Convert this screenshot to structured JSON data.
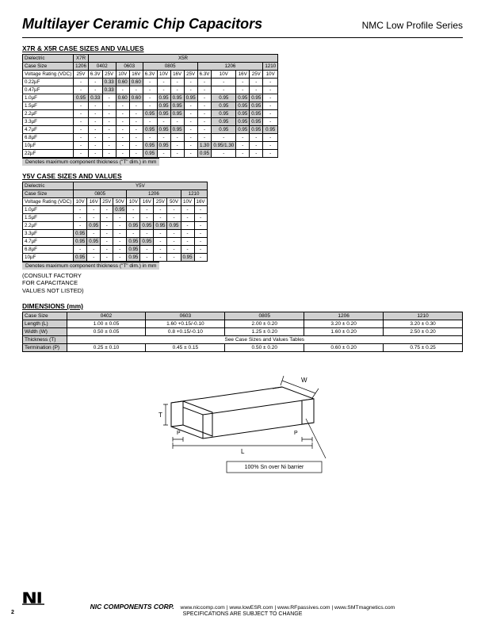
{
  "title": "Multilayer Ceramic Chip Capacitors",
  "series": "NMC Low Profile Series",
  "sec1_title": "X7R & X5R CASE SIZES AND VALUES",
  "dielectric_label": "Dielectric",
  "case_label": "Case Size",
  "vr_label": "Voltage Rating (VDC)",
  "x7r": "X7R",
  "x5r": "X5R",
  "t1": {
    "cs": [
      "1206",
      "0402",
      "0603",
      "0805",
      "1206",
      "1210"
    ],
    "vr": [
      "25V",
      "6.3V",
      "25V",
      "10V",
      "16V",
      "6.3V",
      "10V",
      "16V",
      "25V",
      "6.3V",
      "10V",
      "16V",
      "25V",
      "10V"
    ],
    "caps": [
      "0.22µF",
      "0.47µF",
      "1.0µF",
      "1.5µF",
      "2.2µF",
      "3.3µF",
      "4.7µF",
      "6.8µF",
      "10µF",
      "22µF"
    ],
    "rows": [
      [
        "-",
        "-",
        "0.33",
        "0.60",
        "0.60",
        "-",
        "-",
        "-",
        "-",
        "-",
        "-",
        "-",
        "-",
        "-"
      ],
      [
        "-",
        "-",
        "0.33",
        "-",
        "-",
        "-",
        "-",
        "-",
        "-",
        "-",
        "-",
        "-",
        "-",
        "-"
      ],
      [
        "0.95",
        "0.33",
        "-",
        "0.60",
        "0.60",
        "-",
        "0.95",
        "0.95",
        "0.95",
        "-",
        "0.95",
        "0.95",
        "0.95",
        "-"
      ],
      [
        "-",
        "-",
        "-",
        "-",
        "-",
        "-",
        "0.95",
        "0.95",
        "-",
        "-",
        "0.95",
        "0.95",
        "0.95",
        "-"
      ],
      [
        "-",
        "-",
        "-",
        "-",
        "-",
        "0.95",
        "0.95",
        "0.95",
        "-",
        "-",
        "0.95",
        "0.95",
        "0.95",
        "-"
      ],
      [
        "-",
        "-",
        "-",
        "-",
        "-",
        "-",
        "-",
        "-",
        "-",
        "-",
        "0.95",
        "0.95",
        "0.95",
        "-"
      ],
      [
        "-",
        "-",
        "-",
        "-",
        "-",
        "0.95",
        "0.95",
        "0.95",
        "-",
        "-",
        "0.95",
        "0.95",
        "0.95",
        "0.95"
      ],
      [
        "-",
        "-",
        "-",
        "-",
        "-",
        "-",
        "-",
        "-",
        "-",
        "-",
        "-",
        "-",
        "-",
        "-"
      ],
      [
        "-",
        "-",
        "-",
        "-",
        "-",
        "0.95",
        "0.95",
        "-",
        "-",
        "1.30",
        "0.95/1.30",
        "-",
        "-",
        "-"
      ],
      [
        "-",
        "-",
        "-",
        "-",
        "-",
        "0.95",
        "-",
        "-",
        "-",
        "0.95",
        "-",
        "-",
        "-",
        "-"
      ]
    ]
  },
  "note_thickness": "Denotes maximum component thickness (\"T\" dim.) in mm",
  "sec2_title": "Y5V CASE SIZES AND VALUES",
  "y5v": "Y5V",
  "t2": {
    "cs": [
      "0805",
      "1206",
      "1210"
    ],
    "vr": [
      "10V",
      "16V",
      "25V",
      "50V",
      "10V",
      "16V",
      "25V",
      "50V",
      "10V",
      "16V"
    ],
    "caps": [
      "1.0µF",
      "1.5µF",
      "2.2µF",
      "3.3µF",
      "4.7µF",
      "6.8µF",
      "10µF"
    ],
    "rows": [
      [
        "-",
        "-",
        "-",
        "0.95",
        "-",
        "-",
        "-",
        "-",
        "-",
        "-"
      ],
      [
        "-",
        "-",
        "-",
        "-",
        "-",
        "-",
        "-",
        "-",
        "-",
        "-"
      ],
      [
        "-",
        "0.95",
        "-",
        "-",
        "0.95",
        "0.95",
        "0.95",
        "0.95",
        "-",
        "-"
      ],
      [
        "0.95",
        "-",
        "-",
        "-",
        "-",
        "-",
        "-",
        "-",
        "-",
        "-"
      ],
      [
        "0.95",
        "0.95",
        "-",
        "-",
        "0.95",
        "0.95",
        "-",
        "-",
        "-",
        "-"
      ],
      [
        "-",
        "-",
        "-",
        "-",
        "0.95",
        "-",
        "-",
        "-",
        "-",
        "-"
      ],
      [
        "0.95",
        "-",
        "-",
        "-",
        "0.95",
        "-",
        "-",
        "-",
        "0.95",
        "-"
      ]
    ]
  },
  "consult": [
    "(CONSULT FACTORY",
    " FOR CAPACITANCE",
    " VALUES NOT LISTED)"
  ],
  "sec3_title": "DIMENSIONS (mm)",
  "dims": {
    "cases": [
      "0402",
      "0603",
      "0805",
      "1206",
      "1210"
    ],
    "rows": [
      {
        "label": "Length (L)",
        "v": [
          "1.00 ± 0.05",
          "1.60 +0.15/-0.10",
          "2.00 ± 0.20",
          "3.20 ± 0.20",
          "3.20 ± 0.30"
        ]
      },
      {
        "label": "Width (W)",
        "v": [
          "0.50 ± 0.05",
          "0.8 +0.15/-0.10",
          "1.25 ± 0.20",
          "1.60 ± 0.20",
          "2.50 ± 0.20"
        ]
      },
      {
        "label": "Thickness (T)",
        "span": "See Case Sizes and Values Tables"
      },
      {
        "label": "Termination (P)",
        "v": [
          "0.25 ± 0.10",
          "0.45 ± 0.15",
          "0.50 ± 0.20",
          "0.60 ± 0.20",
          "0.75 ± 0.25"
        ]
      }
    ]
  },
  "diagram": {
    "W": "W",
    "T": "T",
    "P": "P",
    "L": "L",
    "callout": "100% Sn over Ni barrier"
  },
  "footer": {
    "corp": "NIC COMPONENTS CORP.",
    "links": "www.niccomp.com   |   www.lowESR.com   |   www.RFpassives.com   |   www.SMTmagnetics.com",
    "spec": "SPECIFICATIONS ARE SUBJECT TO CHANGE",
    "page": "2"
  }
}
